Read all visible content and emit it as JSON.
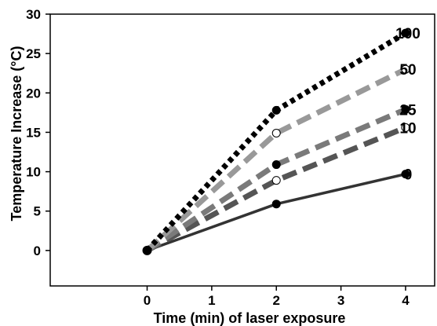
{
  "chart_data": {
    "type": "line",
    "xlabel": "Time (min) of laser exposure",
    "ylabel": "Temperature Increase (°C)",
    "xlim": [
      -1.5,
      4.45
    ],
    "ylim": [
      -4.5,
      30
    ],
    "x_ticks": [
      0,
      1,
      2,
      3,
      4
    ],
    "y_ticks": [
      0,
      5,
      10,
      15,
      20,
      25,
      30
    ],
    "grid": false,
    "legend": "labels at line ends (right)",
    "series": [
      {
        "name": "100",
        "x": [
          0,
          2,
          4
        ],
        "y": [
          0,
          17.8,
          27.6
        ],
        "color": "#000000",
        "dash": "dotted",
        "marker": "filled"
      },
      {
        "name": "50",
        "x": [
          0,
          2,
          4
        ],
        "y": [
          0,
          14.9,
          23.0
        ],
        "color": "#999999",
        "dash": "dashed",
        "marker": "open"
      },
      {
        "name": "25",
        "x": [
          0,
          2,
          4
        ],
        "y": [
          0,
          10.9,
          17.9
        ],
        "color": "#7a7a7a",
        "dash": "dashed",
        "marker": "filled"
      },
      {
        "name": "10",
        "x": [
          0,
          2,
          4
        ],
        "y": [
          0,
          8.9,
          15.6
        ],
        "color": "#555555",
        "dash": "dashed",
        "marker": "open"
      },
      {
        "name": "0",
        "x": [
          0,
          2,
          4
        ],
        "y": [
          0,
          5.9,
          9.7
        ],
        "color": "#333333",
        "dash": "solid",
        "marker": "filled"
      }
    ]
  }
}
